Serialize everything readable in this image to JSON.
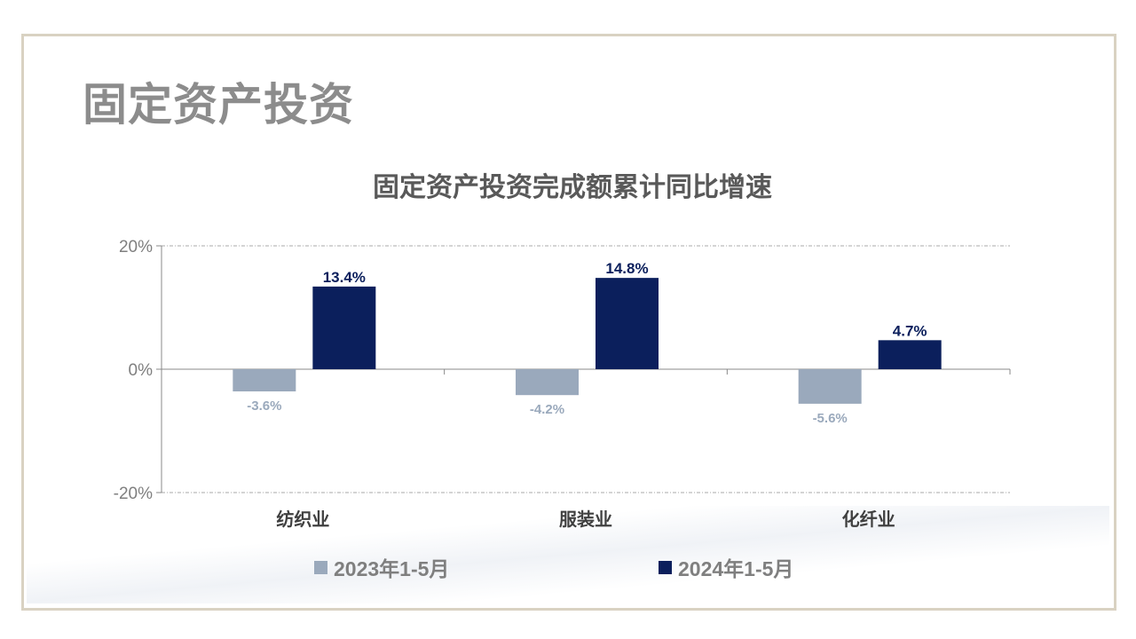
{
  "heading": "固定资产投资",
  "chart_data": {
    "type": "bar",
    "title": "固定资产投资完成额累计同比增速",
    "categories": [
      "纺织业",
      "服装业",
      "化纤业"
    ],
    "series": [
      {
        "name": "2023年1-5月",
        "values": [
          -3.6,
          -4.2,
          -5.6
        ],
        "color": "#9aa9bc",
        "label_color": "#9aa9bc"
      },
      {
        "name": "2024年1-5月",
        "values": [
          13.4,
          14.8,
          4.7
        ],
        "color": "#0b1f5c",
        "label_color": "#0b1f5c"
      }
    ],
    "ylim": [
      -20,
      20
    ],
    "yticks": [
      20,
      0,
      -20
    ],
    "ytick_labels": [
      "20%",
      "0%",
      "-20%"
    ],
    "grid": true,
    "legend": "bottom",
    "xlabel": "",
    "ylabel": ""
  }
}
